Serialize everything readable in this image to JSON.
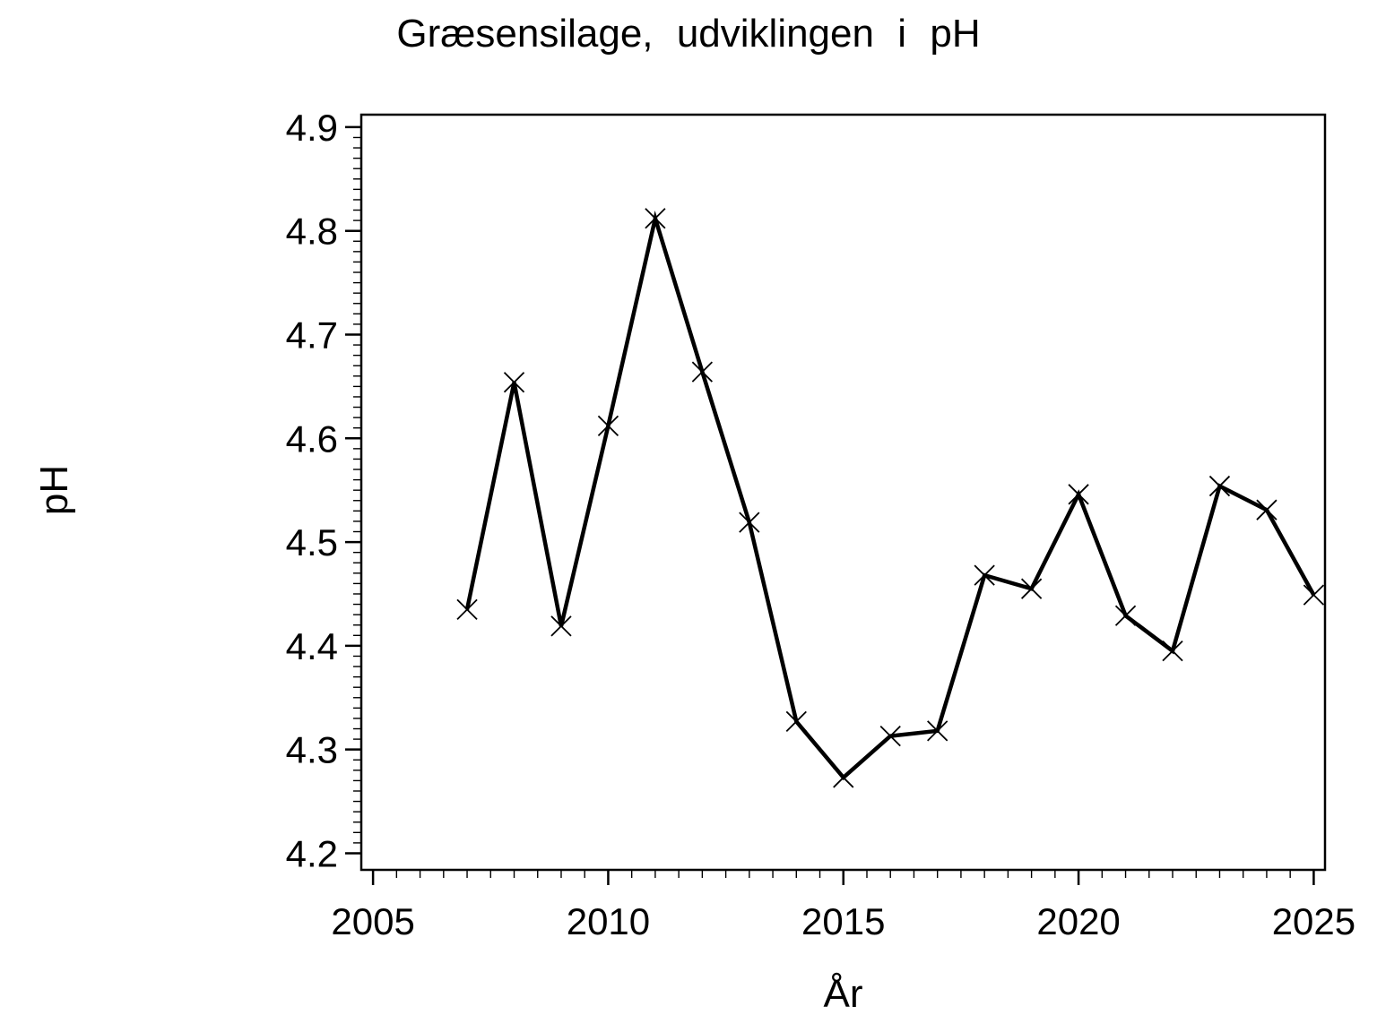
{
  "chart_data": {
    "type": "line",
    "title": "Græsensilage, udviklingen i pH",
    "xlabel": "År",
    "ylabel": "pH",
    "x": [
      2007,
      2008,
      2009,
      2010,
      2011,
      2012,
      2013,
      2014,
      2015,
      2016,
      2017,
      2018,
      2019,
      2020,
      2021,
      2022,
      2023,
      2024,
      2025
    ],
    "values": [
      4.435,
      4.654,
      4.419,
      4.612,
      4.812,
      4.664,
      4.519,
      4.327,
      4.273,
      4.313,
      4.318,
      4.468,
      4.455,
      4.546,
      4.429,
      4.395,
      4.554,
      4.531,
      4.449
    ],
    "series_name": "pH",
    "xlim": [
      2004.75,
      2025.24
    ],
    "ylim": [
      4.184,
      4.912
    ],
    "xticks": [
      2005,
      2010,
      2015,
      2020,
      2025
    ],
    "xtick_labels": [
      "2005",
      "2010",
      "2015",
      "2020",
      "2025"
    ],
    "yticks": [
      4.2,
      4.3,
      4.4,
      4.5,
      4.6,
      4.7,
      4.8,
      4.9
    ],
    "ytick_labels": [
      "4.2",
      "4.3",
      "4.4",
      "4.5",
      "4.6",
      "4.7",
      "4.8",
      "4.9"
    ],
    "x_minor_step": 0.5,
    "y_minor_step": 0.01,
    "marker": "x",
    "line_color": "#000000",
    "background_color": "#ffffff",
    "grid": false,
    "legend": false
  }
}
